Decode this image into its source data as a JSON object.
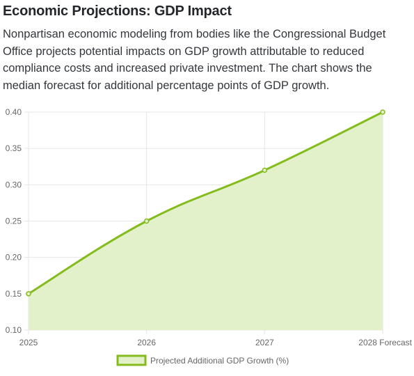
{
  "section": {
    "title": "Economic Projections: GDP Impact",
    "description": "Nonpartisan economic modeling from bodies like the Congressional Budget Office projects potential impacts on GDP growth attributable to reduced compliance costs and increased private investment. The chart shows the median forecast for additional percentage points of GDP growth."
  },
  "colors": {
    "line": "#84bb1d",
    "fill": "#e2f1ca",
    "grid": "#e6e6e6",
    "tick_text": "#666666"
  },
  "chart_data": {
    "type": "area",
    "categories": [
      "2025",
      "2026",
      "2027",
      "2028 Forecast"
    ],
    "series": [
      {
        "name": "Projected Additional GDP Growth (%)",
        "values": [
          0.15,
          0.25,
          0.32,
          0.4
        ]
      }
    ],
    "ylim": [
      0.1,
      0.4
    ],
    "yticks": [
      "0.40",
      "0.35",
      "0.30",
      "0.25",
      "0.20",
      "0.15",
      "0.10"
    ],
    "grid": true,
    "legend": "bottom"
  }
}
